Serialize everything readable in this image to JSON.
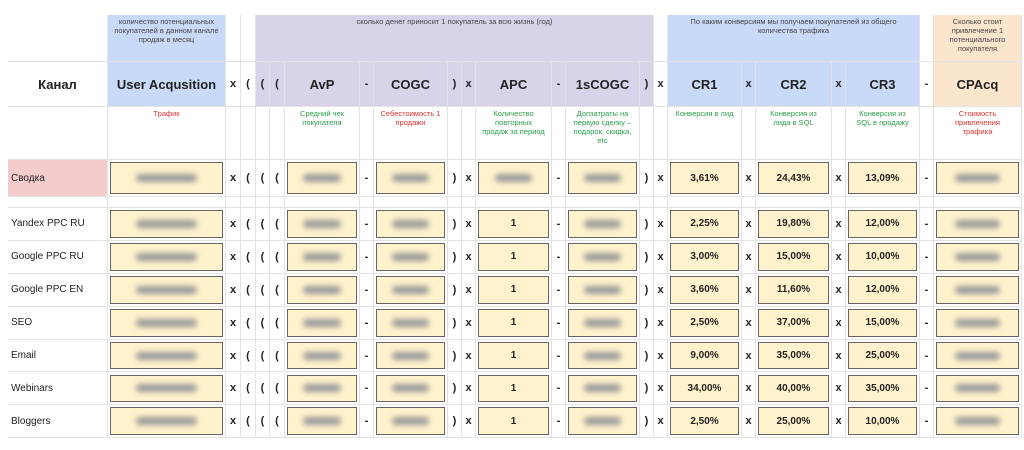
{
  "groups": [
    "количество потенциальных покупателей в данном канале продаж в месяц",
    "сколько денег приносит 1 покупатель за всю жизнь (год)",
    "По каким конверсиям мы получаем покупателей из общего количества трафика",
    "Сколько стоит привлечение 1 потенциального покупателя"
  ],
  "headers": [
    "Канал",
    "User Acqusition",
    "AvP",
    "COGC",
    "APC",
    "1sCOGC",
    "CR1",
    "CR2",
    "CR3",
    "CPAcq"
  ],
  "operators": [
    "x",
    "(",
    "(",
    "(",
    "-",
    ")",
    "x",
    "-",
    ")",
    "x",
    "x",
    "x",
    "-"
  ],
  "descriptions": [
    "Трафик",
    "Средний чек покупателя",
    "Себестоимость 1 продажи",
    "Количество повторных продаж за период",
    "Допзатраты на первую сделку – подарок, скидка, etc",
    "Конверсия в лид",
    "Конверсия из лида в SQL",
    "Конверсия из SQL в продажу",
    "Стоимость привлечения трафика"
  ],
  "summary": {
    "channel": "Сводка",
    "cr1": "3,61%",
    "cr2": "24,43%",
    "cr3": "13,09%"
  },
  "rows": [
    {
      "channel": "Yandex PPC RU",
      "apc": "1",
      "cr1": "2,25%",
      "cr2": "19,80%",
      "cr3": "12,00%"
    },
    {
      "channel": "Google PPC RU",
      "apc": "1",
      "cr1": "3,00%",
      "cr2": "15,00%",
      "cr3": "10,00%"
    },
    {
      "channel": "Google PPC EN",
      "apc": "1",
      "cr1": "3,60%",
      "cr2": "11,60%",
      "cr3": "12,00%"
    },
    {
      "channel": "SEO",
      "apc": "1",
      "cr1": "2,50%",
      "cr2": "37,00%",
      "cr3": "15,00%"
    },
    {
      "channel": "Email",
      "apc": "1",
      "cr1": "9,00%",
      "cr2": "35,00%",
      "cr3": "25,00%"
    },
    {
      "channel": "Webinars",
      "apc": "1",
      "cr1": "34,00%",
      "cr2": "40,00%",
      "cr3": "35,00%"
    },
    {
      "channel": "Bloggers",
      "apc": "1",
      "cr1": "2,50%",
      "cr2": "25,00%",
      "cr3": "10,00%"
    }
  ]
}
